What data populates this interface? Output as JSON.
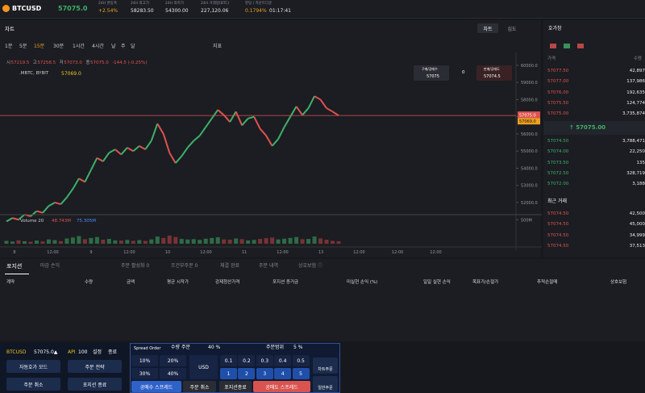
{
  "header": {
    "symbol": "BTCUSD",
    "price": "57075.0",
    "stats": [
      {
        "label": "24H 변동폭",
        "value": "+2.54%"
      },
      {
        "label": "24H 최고가",
        "value": "58283.50"
      },
      {
        "label": "24H 최저가",
        "value": "54300.00"
      },
      {
        "label": "24H 거래량(BTC)",
        "value": "227,120.06"
      },
      {
        "label": "펀딩 / 카운트다운",
        "value": "0.1794%",
        "value2": "01:17:41"
      }
    ]
  },
  "chart_panel": {
    "title": "차트",
    "views": [
      "차트",
      "심도"
    ],
    "intervals": [
      "1분",
      "5분",
      "15분",
      "30분",
      "1시간",
      "4시간",
      "날",
      "주",
      "달"
    ],
    "indicator": "지표",
    "ohlc": [
      "시",
      "57219.5",
      "고",
      "57258.5",
      "저",
      "57073.0",
      "종",
      "57075.0",
      "-144.5 (-0.25%)"
    ],
    "source": ".MBTC, BYBIT",
    "source_price": "57069.0",
    "order_box": {
      "buy": "구매/공매수",
      "buy_price": "57075",
      "qty": "0",
      "sell": "판매/공매도",
      "sell_price": "57074.5"
    }
  },
  "chart_data": {
    "type": "line",
    "up_color": "#3fb06a",
    "down_color": "#e0524f",
    "values": [
      50900,
      51100,
      51000,
      51300,
      51200,
      51500,
      51400,
      51800,
      52000,
      51900,
      52300,
      52800,
      53400,
      53200,
      53900,
      54600,
      54400,
      54900,
      55100,
      54800,
      55200,
      55000,
      55300,
      55100,
      55600,
      56600,
      56000,
      54900,
      54300,
      54700,
      55200,
      55600,
      55900,
      56400,
      56900,
      57400,
      57100,
      56700,
      57300,
      56500,
      56900,
      57000,
      56300,
      55900,
      55300,
      55700,
      56400,
      57000,
      57600,
      57100,
      57500,
      58200,
      58000,
      57500,
      57300,
      57075
    ],
    "ylim": [
      51340,
      60420
    ],
    "yticks": [
      {
        "value": 60000,
        "label": "60000.0"
      },
      {
        "value": 59000,
        "label": "59000.0"
      },
      {
        "value": 58000,
        "label": "58000.0"
      },
      {
        "value": 57000,
        "label": "57000.0"
      },
      {
        "value": 56000,
        "label": "56000.0"
      },
      {
        "value": 55000,
        "label": "55000.0"
      },
      {
        "value": 54000,
        "label": "54000.0"
      },
      {
        "value": 53000,
        "label": "53000.0"
      },
      {
        "value": 52000,
        "label": "52000.0"
      }
    ],
    "last_price": {
      "value": 57075,
      "label": "57075.0",
      "color": "#e0524f"
    },
    "index_price": {
      "value": 57069,
      "label": "57069.0"
    },
    "x_labels": [
      "8",
      "12:00",
      "9",
      "12:00",
      "10",
      "12:00",
      "11",
      "12:00",
      "13",
      "12:00",
      "12:00",
      "12:00"
    ],
    "volume": {
      "title": "Volume 20",
      "labels": [
        "48.743M",
        "75.305M"
      ],
      "ylim": [
        0,
        540
      ],
      "yticks": [
        {
          "value": 500,
          "label": "500M"
        }
      ],
      "values": [
        60,
        45,
        70,
        52,
        40,
        66,
        48,
        90,
        75,
        55,
        110,
        130,
        160,
        95,
        120,
        140,
        85,
        100,
        70,
        65,
        80,
        60,
        75,
        58,
        90,
        150,
        120,
        170,
        140,
        100,
        88,
        95,
        80,
        105,
        120,
        135,
        90,
        85,
        110,
        95,
        70,
        80,
        100,
        115,
        130,
        90,
        105,
        120,
        140,
        95,
        100,
        150,
        110,
        85,
        60,
        50
      ]
    }
  },
  "order_book": {
    "title": "호가창",
    "headers": [
      "가격",
      "수량"
    ],
    "asks": [
      [
        "57077.50",
        "42,897"
      ],
      [
        "57077.00",
        "137,986"
      ],
      [
        "57076.00",
        "192,635"
      ],
      [
        "57075.50",
        "124,774"
      ],
      [
        "57075.00",
        "3,735,874"
      ]
    ],
    "mid": "↑ 57075.00",
    "bids": [
      [
        "57074.50",
        "3,788,471"
      ],
      [
        "57074.00",
        "22,250"
      ],
      [
        "57073.50",
        "135"
      ],
      [
        "57072.50",
        "328,719"
      ],
      [
        "57072.00",
        "3,188"
      ]
    ],
    "trades_title": "최근 거래",
    "trades": [
      [
        "57074.50",
        "42,500"
      ],
      [
        "57074.50",
        "45,000"
      ],
      [
        "57074.50",
        "34,999"
      ],
      [
        "57074.50",
        "37,513"
      ]
    ]
  },
  "positions": {
    "tabs": [
      "포지션",
      "마감 손익",
      "주문 활성화 0",
      "조건부주문 0",
      "체결 완료",
      "주문 내역",
      "상호보험 ⓘ"
    ],
    "columns": [
      "계약",
      "수량",
      "금액",
      "평균 시작가",
      "강제청산가격",
      "포지션 증거금",
      "미실현 손익 (%)",
      "일일 실현 손익",
      "목표가/손절가",
      "추적손절매",
      "상호보험"
    ]
  },
  "quick_panel": {
    "symbol": "BTCUSD",
    "price": "57075.0▲",
    "api": "API",
    "api_value": "100",
    "settings": "설정",
    "close": "종료",
    "buttons": [
      "자동호가 모드",
      "주문 전략",
      "주문 취소",
      "포지션 종료"
    ]
  },
  "spread_panel": {
    "title": "Spread Order",
    "qty_label": "수량 주문",
    "qty_value": "40 %",
    "range_label": "주문범위",
    "range_value": "5 %",
    "pcts": [
      "10%",
      "20%",
      "30%",
      "40%"
    ],
    "unit": "USD",
    "ranges": [
      "0.1",
      "0.2",
      "0.3",
      "0.4",
      "0.5"
    ],
    "steps": [
      "1",
      "2",
      "3",
      "4",
      "5"
    ],
    "actions": [
      "공매수 스프레드",
      "주문 취소",
      "포지션종료",
      "공매도 스프레드"
    ],
    "side_buttons": [
      "차트주문",
      "일반주문"
    ]
  }
}
